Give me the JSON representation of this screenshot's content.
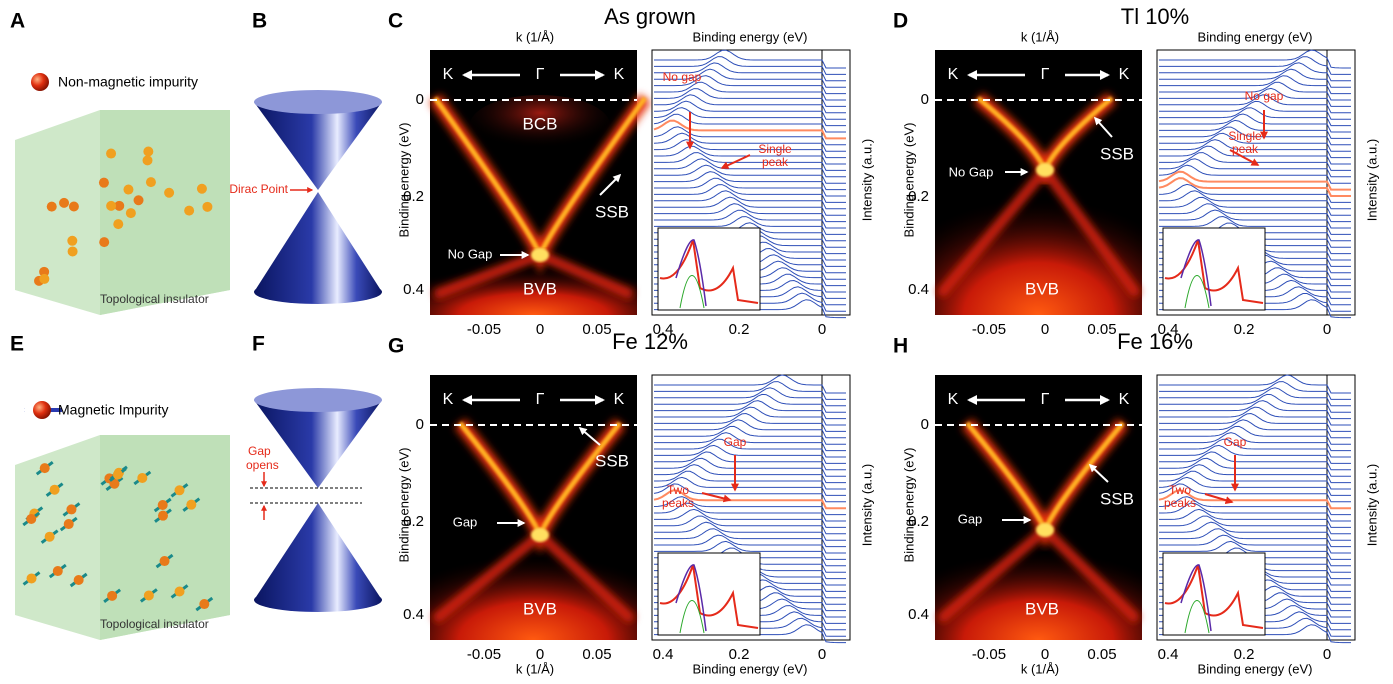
{
  "panel_a": {
    "label": "A",
    "legend": "Non-magnetic impurity",
    "caption": "Topological insulator"
  },
  "panel_b": {
    "label": "B",
    "annotation": "Dirac Point"
  },
  "panel_e": {
    "label": "E",
    "legend": "Magnetic Impurity",
    "caption": "Topological insulator"
  },
  "panel_f": {
    "label": "F",
    "annotation": [
      "Gap",
      "opens"
    ]
  },
  "arpes_panels": [
    {
      "label": "C",
      "title": "As grown",
      "k_axis": "k (1/Å)",
      "energy_axis": "Binding energy (eV)",
      "edc_axis": "Binding energy (eV)",
      "intensity_axis": "Intensity (a.u.)",
      "directions": [
        "K",
        "Γ",
        "K"
      ],
      "yticks": [
        "0",
        "0.2",
        "0.4"
      ],
      "xticks": [
        "-0.05",
        "0",
        "0.05"
      ],
      "edc_ticks": [
        "0.4",
        "0.2",
        "0"
      ],
      "image_labels": [
        "BCB",
        "SSB",
        "No Gap",
        "BVB"
      ],
      "edc_labels": [
        [
          "No gap"
        ],
        [
          "Single",
          "peak"
        ]
      ]
    },
    {
      "label": "D",
      "title": "Tl 10%",
      "k_axis": "k (1/Å)",
      "energy_axis": "Binding energy (eV)",
      "edc_axis": "Binding energy (eV)",
      "intensity_axis": "Intensity (a.u.)",
      "directions": [
        "K",
        "Γ",
        "K"
      ],
      "yticks": [
        "0",
        "0.2",
        "0.4"
      ],
      "xticks": [
        "-0.05",
        "0",
        "0.05"
      ],
      "edc_ticks": [
        "0.4",
        "0.2",
        "0"
      ],
      "image_labels": [
        "SSB",
        "No Gap",
        "BVB"
      ],
      "edc_labels": [
        [
          "No gap"
        ],
        [
          "Single",
          "peak"
        ]
      ]
    },
    {
      "label": "G",
      "title": "Fe 12%",
      "k_axis": "k (1/Å)",
      "energy_axis": "Binding energy (eV)",
      "edc_axis": "Binding energy (eV)",
      "intensity_axis": "Intensity (a.u.)",
      "directions": [
        "K",
        "Γ",
        "K"
      ],
      "yticks": [
        "0",
        "0.2",
        "0.4"
      ],
      "xticks": [
        "-0.05",
        "0",
        "0.05"
      ],
      "edc_ticks": [
        "0.4",
        "0.2",
        "0"
      ],
      "image_labels": [
        "SSB",
        "Gap",
        "BVB"
      ],
      "edc_labels": [
        [
          "Gap"
        ],
        [
          "Two",
          "peaks"
        ]
      ]
    },
    {
      "label": "H",
      "title": "Fe 16%",
      "k_axis": "k (1/Å)",
      "energy_axis": "Binding energy (eV)",
      "edc_axis": "Binding energy (eV)",
      "intensity_axis": "Intensity (a.u.)",
      "directions": [
        "K",
        "Γ",
        "K"
      ],
      "yticks": [
        "0",
        "0.2",
        "0.4"
      ],
      "xticks": [
        "-0.05",
        "0",
        "0.05"
      ],
      "edc_ticks": [
        "0.4",
        "0.2",
        "0"
      ],
      "image_labels": [
        "SSB",
        "Gap",
        "BVB"
      ],
      "edc_labels": [
        [
          "Gap"
        ],
        [
          "Two",
          "peaks"
        ]
      ]
    }
  ]
}
